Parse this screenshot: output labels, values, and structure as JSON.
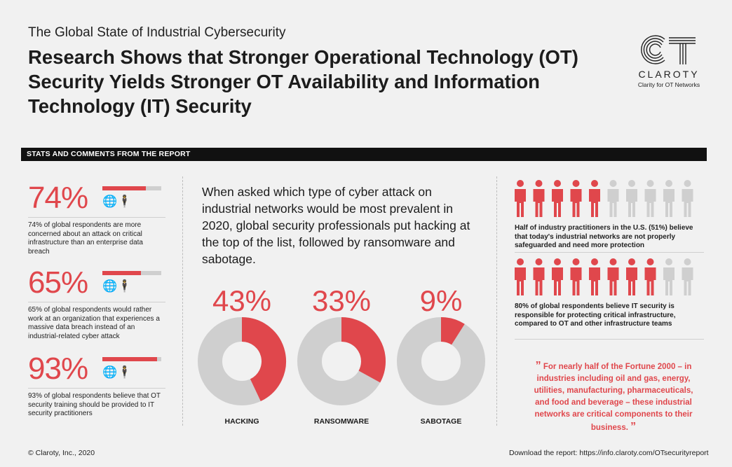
{
  "header": {
    "supertitle": "The Global State of Industrial Cybersecurity",
    "title": "Research Shows that Stronger Operational Technology (OT) Security Yields Stronger OT Availability and Information Technology (IT) Security"
  },
  "logo": {
    "brand": "CLAROTY",
    "tagline": "Clarity for OT Networks"
  },
  "section_band": "STATS AND COMMENTS FROM THE REPORT",
  "stats": [
    {
      "value": "74%",
      "percent": 74,
      "icons": "🌐🕴",
      "desc": "74% of global respondents are more concerned about an attack on critical infrastructure than an enterprise data breach"
    },
    {
      "value": "65%",
      "percent": 65,
      "icons": "🌐🕴",
      "desc": "65% of global respondents would rather work at an organization that experiences a massive data breach instead of an industrial-related cyber attack"
    },
    {
      "value": "93%",
      "percent": 93,
      "icons": "🌐🕴",
      "desc": "93% of global respondents believe that OT security training should be provided to IT security practitioners"
    }
  ],
  "lead_text": "When asked which type of cyber attack on industrial networks would be most prevalent in 2020, global security professionals put hacking at the top of the list, followed by ransomware and sabotage.",
  "chart_data": {
    "type": "pie",
    "variant": "donut",
    "title": "",
    "categories": [
      "HACKING",
      "RANSOMWARE",
      "SABOTAGE"
    ],
    "values": [
      43,
      33,
      9
    ],
    "value_labels": [
      "43%",
      "33%",
      "9%"
    ],
    "colors": {
      "highlight": "#e0474c",
      "remainder": "#cfcfcf"
    }
  },
  "people": [
    {
      "highlighted": 5,
      "total": 10,
      "note": "Half of industry practitioners in the U.S. (51%) believe that today's industrial networks are not properly safeguarded and need more protection"
    },
    {
      "highlighted": 8,
      "total": 10,
      "note": "80% of global respondents believe IT security is responsible for protecting critical infrastructure, compared to OT and other infrastructure teams"
    }
  ],
  "quote": {
    "open_mark": "”",
    "text": "For nearly half of the Fortune 2000 – in industries including oil and gas, energy, utilities, manufacturing, pharmaceuticals, and food and beverage – these industrial networks are critical components to their business.",
    "close_mark": "”"
  },
  "footer": {
    "copyright": "© Claroty, Inc., 2020",
    "download": "Download the report: https://info.claroty.com/OTsecurityreport"
  },
  "colors": {
    "accent": "#e0474c",
    "muted": "#cfcfcf",
    "background": "#f1f1f1",
    "dark": "#111111"
  }
}
